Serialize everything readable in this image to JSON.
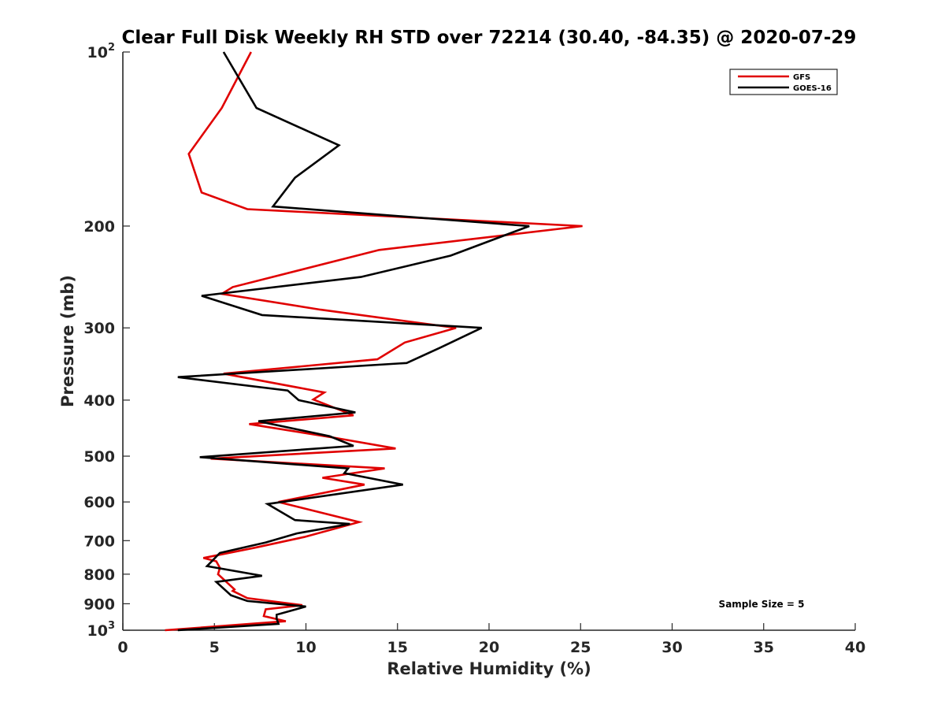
{
  "chart_data": {
    "type": "line",
    "title": "Clear Full Disk Weekly RH STD over 72214 (30.40, -84.35) @ 2020-07-29",
    "xlabel": "Relative Humidity (%)",
    "ylabel": "Pressure (mb)",
    "xlim": [
      0,
      40
    ],
    "ylim": [
      100,
      1000
    ],
    "yscale": "log",
    "yreversed": true,
    "grid": false,
    "legend_position": "top-right",
    "x_ticks": [
      0,
      5,
      10,
      15,
      20,
      25,
      30,
      35,
      40
    ],
    "x_tick_labels": [
      "0",
      "5",
      "10",
      "15",
      "20",
      "25",
      "30",
      "35",
      "40"
    ],
    "y_ticks": [
      100,
      200,
      300,
      400,
      500,
      600,
      700,
      800,
      900,
      1000
    ],
    "y_tick_labels": [
      {
        "base": "10",
        "exp": "2"
      },
      {
        "base": "200",
        "exp": ""
      },
      {
        "base": "300",
        "exp": ""
      },
      {
        "base": "400",
        "exp": ""
      },
      {
        "base": "500",
        "exp": ""
      },
      {
        "base": "600",
        "exp": ""
      },
      {
        "base": "700",
        "exp": ""
      },
      {
        "base": "800",
        "exp": ""
      },
      {
        "base": "900",
        "exp": ""
      },
      {
        "base": "10",
        "exp": "3"
      }
    ],
    "annotation": "Sample Size = 5",
    "series": [
      {
        "name": "GFS",
        "color": "#e00000",
        "points": [
          [
            7.0,
            100
          ],
          [
            5.4,
            125
          ],
          [
            3.6,
            150
          ],
          [
            4.3,
            175
          ],
          [
            6.8,
            187
          ],
          [
            25.1,
            200
          ],
          [
            14.0,
            220
          ],
          [
            6.0,
            255
          ],
          [
            5.4,
            262
          ],
          [
            10.8,
            279
          ],
          [
            18.2,
            300
          ],
          [
            15.4,
            318
          ],
          [
            13.9,
            340
          ],
          [
            5.5,
            360
          ],
          [
            11.0,
            388
          ],
          [
            10.4,
            399
          ],
          [
            12.6,
            425
          ],
          [
            6.9,
            440
          ],
          [
            11.6,
            465
          ],
          [
            14.9,
            485
          ],
          [
            4.8,
            505
          ],
          [
            14.3,
            525
          ],
          [
            10.9,
            545
          ],
          [
            13.2,
            560
          ],
          [
            8.5,
            600
          ],
          [
            12.9,
            650
          ],
          [
            9.9,
            690
          ],
          [
            7.2,
            720
          ],
          [
            4.4,
            750
          ],
          [
            5.1,
            760
          ],
          [
            5.3,
            780
          ],
          [
            5.2,
            800
          ],
          [
            6.1,
            850
          ],
          [
            6.0,
            855
          ],
          [
            6.8,
            880
          ],
          [
            9.8,
            905
          ],
          [
            7.8,
            920
          ],
          [
            7.7,
            945
          ],
          [
            8.9,
            965
          ],
          [
            2.3,
            1000
          ]
        ]
      },
      {
        "name": "GOES-16",
        "color": "#000000",
        "points": [
          [
            5.5,
            100
          ],
          [
            7.3,
            125
          ],
          [
            11.8,
            145
          ],
          [
            9.4,
            165
          ],
          [
            8.2,
            185
          ],
          [
            22.2,
            200
          ],
          [
            17.9,
            225
          ],
          [
            13.0,
            245
          ],
          [
            4.3,
            264
          ],
          [
            7.6,
            285
          ],
          [
            19.6,
            300
          ],
          [
            17.3,
            325
          ],
          [
            15.5,
            345
          ],
          [
            3.0,
            365
          ],
          [
            9.0,
            385
          ],
          [
            9.6,
            400
          ],
          [
            12.7,
            420
          ],
          [
            7.4,
            435
          ],
          [
            11.3,
            462
          ],
          [
            12.6,
            480
          ],
          [
            4.2,
            502
          ],
          [
            12.3,
            525
          ],
          [
            12.1,
            535
          ],
          [
            15.3,
            560
          ],
          [
            7.9,
            605
          ],
          [
            9.4,
            645
          ],
          [
            12.4,
            655
          ],
          [
            9.5,
            680
          ],
          [
            7.8,
            705
          ],
          [
            5.3,
            735
          ],
          [
            4.6,
            775
          ],
          [
            7.6,
            805
          ],
          [
            5.1,
            825
          ],
          [
            5.9,
            870
          ],
          [
            6.8,
            890
          ],
          [
            10.0,
            910
          ],
          [
            8.4,
            940
          ],
          [
            8.4,
            955
          ],
          [
            8.5,
            975
          ],
          [
            3.0,
            1000
          ]
        ]
      }
    ]
  }
}
